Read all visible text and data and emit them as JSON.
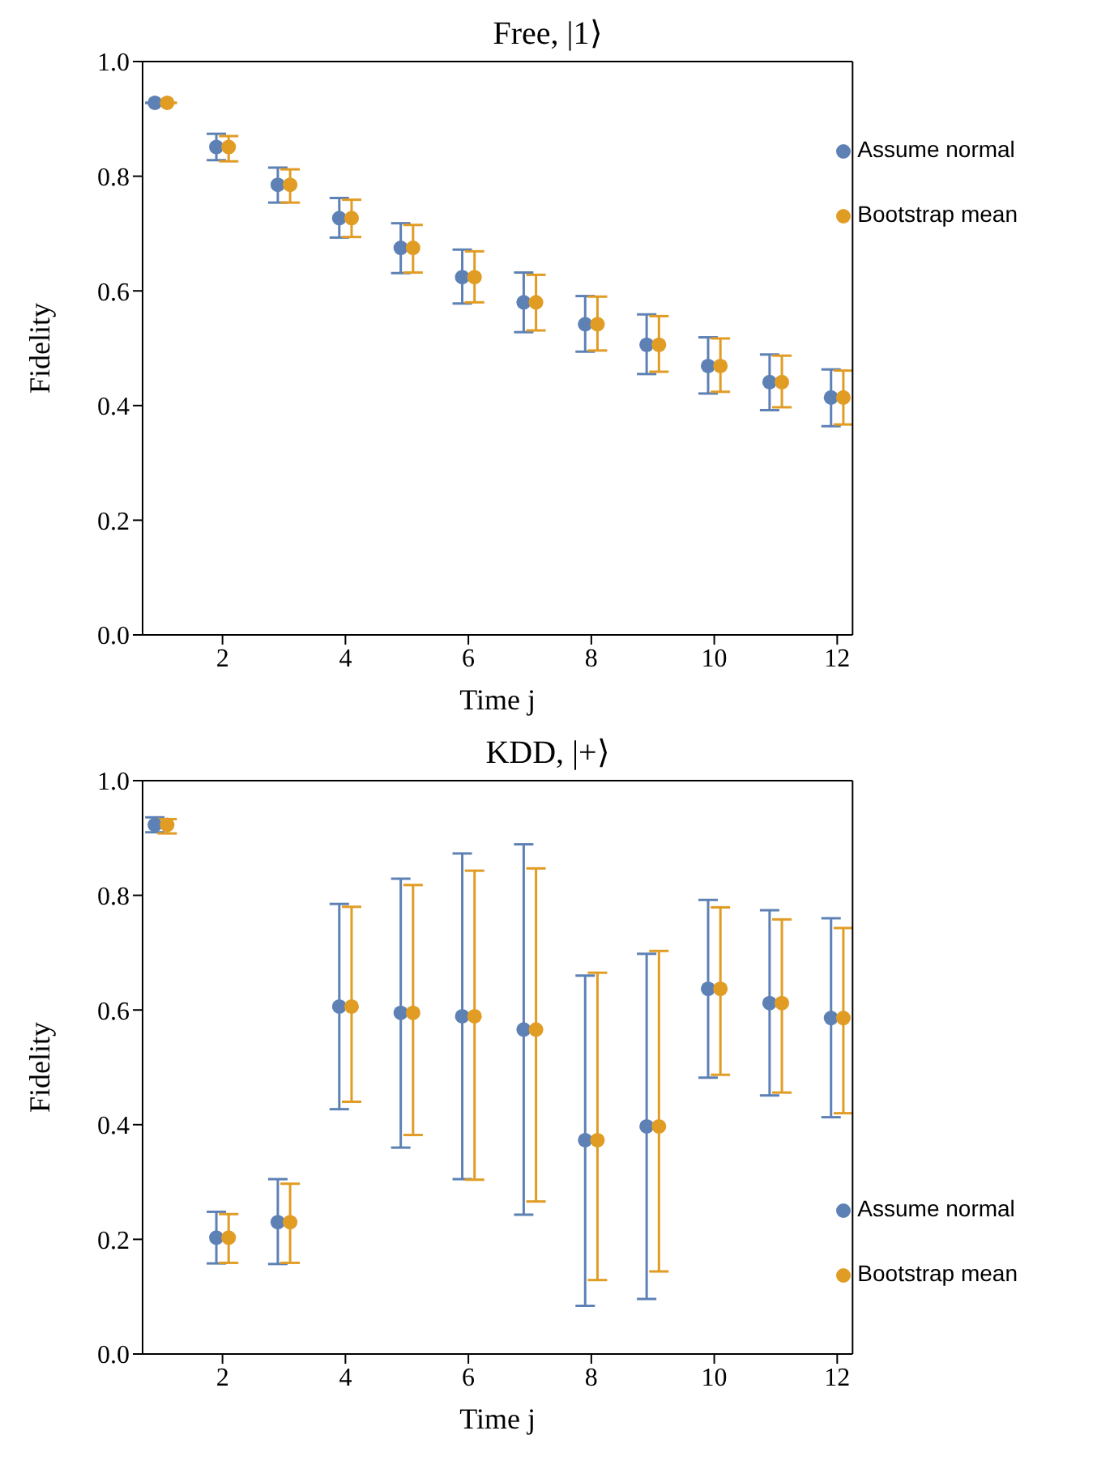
{
  "chart_data": [
    {
      "type": "scatter",
      "title": "Free,  |1⟩",
      "xlabel": "Time j",
      "ylabel": "Fidelity",
      "xlim": [
        0.7,
        12.25
      ],
      "xticks": [
        2,
        4,
        6,
        8,
        10,
        12
      ],
      "ylim": [
        0,
        1
      ],
      "yticks": [
        {
          "value": 0,
          "label": "0.0"
        },
        {
          "value": 0.2,
          "label": "0.2"
        },
        {
          "value": 0.4,
          "label": "0.4"
        },
        {
          "value": 0.6,
          "label": "0.6"
        },
        {
          "value": 0.8,
          "label": "0.8"
        },
        {
          "value": 1,
          "label": "1.0"
        }
      ],
      "grid": false,
      "legend": "top right",
      "marker": "circle",
      "series": [
        {
          "name": "Assume normal",
          "color": "#5e81b5",
          "x": [
            0.9,
            1.9,
            2.9,
            3.9,
            4.9,
            5.9,
            6.9,
            7.9,
            8.9,
            9.9,
            10.9,
            11.9
          ],
          "values": [
            0.928,
            0.851,
            0.785,
            0.727,
            0.675,
            0.624,
            0.58,
            0.542,
            0.506,
            0.469,
            0.441,
            0.414
          ],
          "errors": [
            null,
            [
              0.828,
              0.874
            ],
            [
              0.754,
              0.815
            ],
            [
              0.693,
              0.762
            ],
            [
              0.631,
              0.718
            ],
            [
              0.578,
              0.672
            ],
            [
              0.528,
              0.632
            ],
            [
              0.494,
              0.591
            ],
            [
              0.455,
              0.559
            ],
            [
              0.421,
              0.519
            ],
            [
              0.392,
              0.489
            ],
            [
              0.364,
              0.463
            ]
          ]
        },
        {
          "name": "Bootstrap mean",
          "color": "#e19c24",
          "x": [
            1.1,
            2.1,
            3.1,
            4.1,
            5.1,
            6.1,
            7.1,
            8.1,
            9.1,
            10.1,
            11.1,
            12.1
          ],
          "values": [
            0.928,
            0.851,
            0.785,
            0.727,
            0.675,
            0.624,
            0.58,
            0.542,
            0.506,
            0.469,
            0.441,
            0.414
          ],
          "errors": [
            null,
            [
              0.826,
              0.87
            ],
            [
              0.754,
              0.812
            ],
            [
              0.694,
              0.759
            ],
            [
              0.632,
              0.715
            ],
            [
              0.58,
              0.669
            ],
            [
              0.531,
              0.628
            ],
            [
              0.496,
              0.59
            ],
            [
              0.459,
              0.556
            ],
            [
              0.424,
              0.517
            ],
            [
              0.397,
              0.487
            ],
            [
              0.367,
              0.461
            ]
          ]
        }
      ]
    },
    {
      "type": "scatter",
      "title": "KDD,  |+⟩",
      "xlabel": "Time j",
      "ylabel": "Fidelity",
      "xlim": [
        0.7,
        12.25
      ],
      "xticks": [
        2,
        4,
        6,
        8,
        10,
        12
      ],
      "ylim": [
        0,
        1
      ],
      "yticks": [
        {
          "value": 0,
          "label": "0.0"
        },
        {
          "value": 0.2,
          "label": "0.2"
        },
        {
          "value": 0.4,
          "label": "0.4"
        },
        {
          "value": 0.6,
          "label": "0.6"
        },
        {
          "value": 0.8,
          "label": "0.8"
        },
        {
          "value": 1,
          "label": "1.0"
        }
      ],
      "grid": false,
      "legend": "bottom right",
      "marker": "circle",
      "series": [
        {
          "name": "Assume normal",
          "color": "#5e81b5",
          "x": [
            0.9,
            1.9,
            2.9,
            3.9,
            4.9,
            5.9,
            6.9,
            7.9,
            8.9,
            9.9,
            10.9,
            11.9
          ],
          "values": [
            0.923,
            0.203,
            0.23,
            0.606,
            0.595,
            0.589,
            0.566,
            0.373,
            0.397,
            0.637,
            0.612,
            0.586
          ],
          "errors": [
            [
              0.91,
              0.936
            ],
            [
              0.158,
              0.248
            ],
            [
              0.157,
              0.305
            ],
            [
              0.427,
              0.785
            ],
            [
              0.36,
              0.829
            ],
            [
              0.305,
              0.873
            ],
            [
              0.243,
              0.889
            ],
            [
              0.084,
              0.66
            ],
            [
              0.096,
              0.698
            ],
            [
              0.482,
              0.792
            ],
            [
              0.451,
              0.774
            ],
            [
              0.413,
              0.76
            ]
          ]
        },
        {
          "name": "Bootstrap mean",
          "color": "#e19c24",
          "x": [
            1.1,
            2.1,
            3.1,
            4.1,
            5.1,
            6.1,
            7.1,
            8.1,
            9.1,
            10.1,
            11.1,
            12.1
          ],
          "values": [
            0.923,
            0.203,
            0.23,
            0.606,
            0.595,
            0.589,
            0.566,
            0.373,
            0.397,
            0.637,
            0.612,
            0.586
          ],
          "errors": [
            [
              0.908,
              0.933
            ],
            [
              0.159,
              0.244
            ],
            [
              0.159,
              0.297
            ],
            [
              0.44,
              0.78
            ],
            [
              0.382,
              0.818
            ],
            [
              0.304,
              0.843
            ],
            [
              0.266,
              0.847
            ],
            [
              0.129,
              0.665
            ],
            [
              0.144,
              0.703
            ],
            [
              0.487,
              0.779
            ],
            [
              0.456,
              0.758
            ],
            [
              0.42,
              0.743
            ]
          ]
        }
      ]
    }
  ]
}
